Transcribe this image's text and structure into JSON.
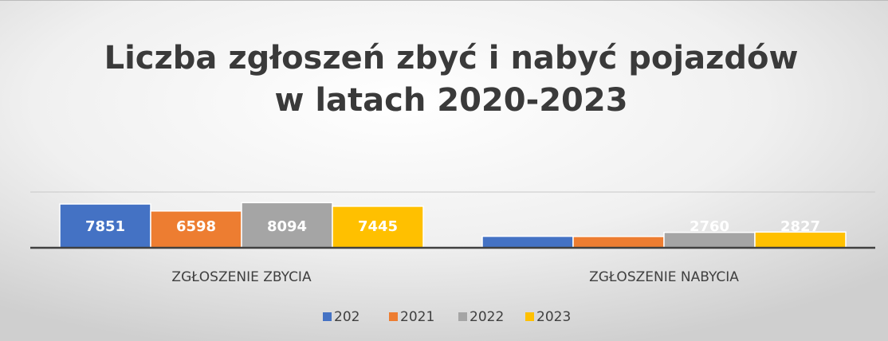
{
  "chart_data": {
    "type": "bar",
    "title": [
      "Liczba zgłoszeń zbyć i nabyć pojazdów",
      "w latach 2020-2023"
    ],
    "categories": [
      "ZGŁOSZENIE ZBYCIA",
      "ZGŁOSZENIE NABYCIA"
    ],
    "series": [
      {
        "name": "202",
        "color": "#4472c4",
        "values": [
          7851,
          2060
        ],
        "value_labels": [
          "7851",
          null
        ]
      },
      {
        "name": "2021",
        "color": "#ed7d31",
        "values": [
          6598,
          2030
        ],
        "value_labels": [
          "6598",
          null
        ]
      },
      {
        "name": "2022",
        "color": "#a5a5a5",
        "values": [
          8094,
          2760
        ],
        "value_labels": [
          "8094",
          "2760"
        ]
      },
      {
        "name": "2023",
        "color": "#ffc000",
        "values": [
          7445,
          2827
        ],
        "value_labels": [
          "7445",
          "2827"
        ]
      }
    ],
    "ylim": [
      0,
      10000
    ],
    "grid": true,
    "legend": "bottom"
  }
}
